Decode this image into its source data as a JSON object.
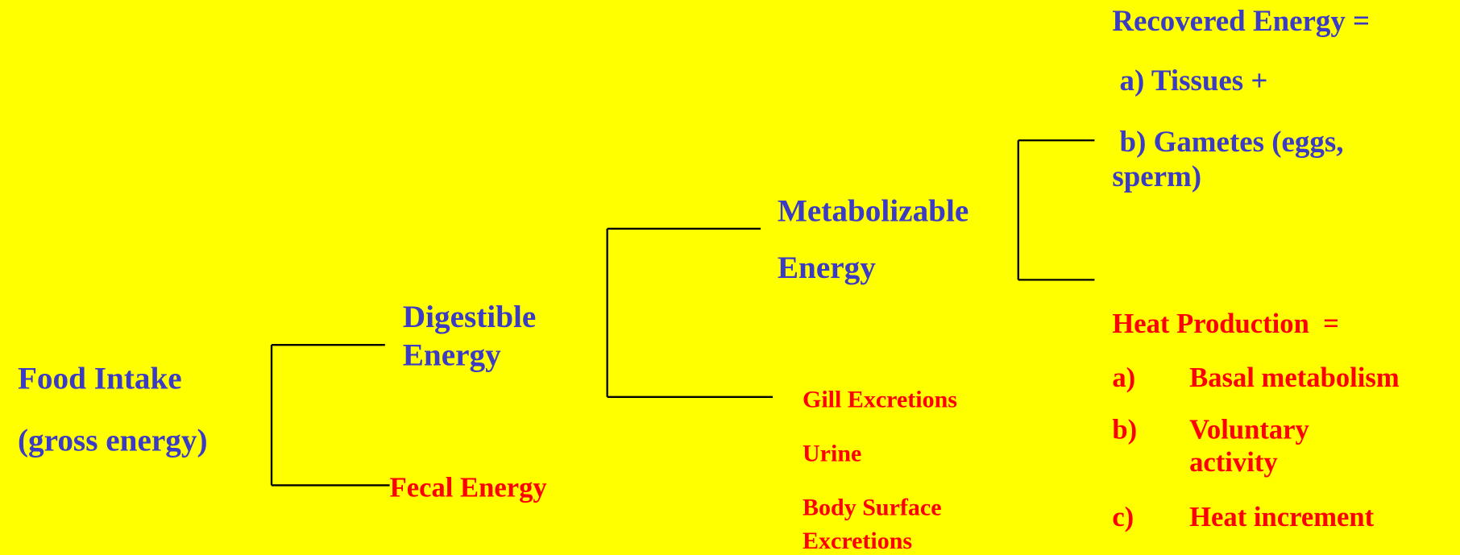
{
  "food_intake": {
    "lines": [
      "Food Intake",
      "(gross energy)"
    ]
  },
  "digestible_energy": {
    "lines": [
      "Digestible",
      "Energy"
    ]
  },
  "fecal_energy": "Fecal Energy",
  "metabolizable_energy": {
    "lines": [
      "Metabolizable",
      "Energy"
    ]
  },
  "excretions": [
    "Gill Excretions",
    "Urine",
    "Body Surface",
    "Excretions"
  ],
  "recovered_energy": {
    "lines": [
      "Recovered Energy =",
      " a) Tissues +",
      " b) Gametes (eggs,",
      "sperm)"
    ]
  },
  "heat_production": {
    "title": "Heat Production  =",
    "items": [
      {
        "marker": "a)",
        "lines": [
          "Basal metabolism"
        ]
      },
      {
        "marker": "b)",
        "lines": [
          "Voluntary",
          "activity"
        ]
      },
      {
        "marker": "c)",
        "lines": [
          "Heat increment"
        ]
      }
    ]
  }
}
